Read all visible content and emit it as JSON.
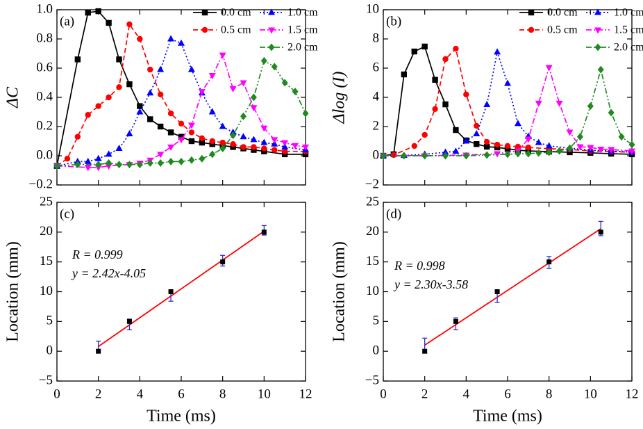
{
  "chart_data": [
    {
      "type": "line",
      "label": "(a)",
      "ylabel": "ΔC",
      "xlim": [
        0,
        12
      ],
      "xticks": [
        0,
        2,
        4,
        6,
        8,
        10,
        12
      ],
      "xticklabels": false,
      "ylim": [
        -0.2,
        1.0
      ],
      "yticks": [
        {
          "value": -0.2,
          "label": "−0.2"
        },
        {
          "value": 0,
          "label": "0.0"
        },
        0.2,
        0.4,
        0.6,
        0.8,
        {
          "value": 1.0,
          "label": "1.0"
        }
      ],
      "series": [
        {
          "name": "0.0 cm",
          "color": "#000000",
          "marker": "square",
          "linestyle": "solid",
          "x": [
            0,
            1,
            1.5,
            2,
            2.5,
            3,
            3.5,
            4,
            4.5,
            5,
            5.5,
            6,
            6.5,
            7,
            7.5,
            8,
            8.5,
            9,
            9.5,
            10,
            11,
            12
          ],
          "values": [
            -0.07,
            0.66,
            0.98,
            0.99,
            0.91,
            0.66,
            0.49,
            0.34,
            0.25,
            0.2,
            0.16,
            0.13,
            0.1,
            0.09,
            0.08,
            0.07,
            0.06,
            0.05,
            0.04,
            0.03,
            0.01,
            0.01
          ]
        },
        {
          "name": "0.5 cm",
          "color": "#ff0000",
          "marker": "circle",
          "linestyle": "dash",
          "x": [
            0,
            0.5,
            1,
            1.5,
            2,
            2.5,
            3,
            3.5,
            4,
            4.5,
            5,
            5.5,
            6,
            6.5,
            7,
            7.5,
            8,
            8.5,
            9,
            9.5,
            10,
            10.5,
            11,
            12
          ],
          "values": [
            -0.07,
            -0.02,
            0.13,
            0.28,
            0.34,
            0.4,
            0.47,
            0.9,
            0.8,
            0.59,
            0.42,
            0.29,
            0.22,
            0.16,
            0.12,
            0.1,
            0.09,
            0.08,
            0.06,
            0.06,
            0.05,
            0.04,
            0.03,
            0.03
          ]
        },
        {
          "name": "1.0 cm",
          "color": "#0000ff",
          "marker": "triangle-up",
          "linestyle": "dot",
          "x": [
            0,
            1,
            1.5,
            2,
            2.5,
            3,
            3.5,
            4,
            4.5,
            5,
            5.5,
            6,
            6.5,
            7,
            7.5,
            8,
            8.5,
            9,
            9.5,
            10,
            10.5,
            11,
            12
          ],
          "values": [
            -0.07,
            -0.04,
            -0.04,
            -0.02,
            0.01,
            0.05,
            0.15,
            0.3,
            0.43,
            0.59,
            0.8,
            0.77,
            0.59,
            0.43,
            0.3,
            0.2,
            0.16,
            0.13,
            0.11,
            0.09,
            0.08,
            0.06,
            0.04
          ]
        },
        {
          "name": "1.5 cm",
          "color": "#ff00ff",
          "marker": "triangle-down",
          "linestyle": "dashdot",
          "x": [
            0,
            1.5,
            2,
            2.5,
            3.5,
            4,
            4.5,
            5,
            5.5,
            6,
            6.5,
            7,
            7.5,
            8,
            8.5,
            9,
            9.5,
            10,
            10.5,
            11,
            11.5,
            12
          ],
          "values": [
            -0.07,
            -0.08,
            -0.08,
            -0.07,
            -0.06,
            -0.05,
            -0.03,
            0.01,
            0.06,
            0.11,
            0.21,
            0.44,
            0.55,
            0.69,
            0.46,
            0.5,
            0.33,
            0.19,
            0.11,
            0.09,
            0.07,
            0.06
          ]
        },
        {
          "name": "2.0 cm",
          "color": "#1f8a1f",
          "marker": "diamond",
          "linestyle": "dashdotdot",
          "x": [
            0,
            1,
            2,
            2.5,
            3,
            3.5,
            4,
            4.5,
            5,
            5.5,
            6,
            6.5,
            7,
            7.5,
            8,
            8.5,
            9,
            9.5,
            10,
            10.5,
            11,
            11.5,
            12
          ],
          "values": [
            -0.07,
            -0.06,
            -0.06,
            -0.05,
            -0.06,
            -0.06,
            -0.06,
            -0.05,
            -0.05,
            -0.04,
            -0.04,
            -0.03,
            -0.02,
            0.01,
            0.05,
            0.14,
            0.27,
            0.4,
            0.65,
            0.61,
            0.5,
            0.44,
            0.29
          ]
        }
      ]
    },
    {
      "type": "line",
      "label": "(b)",
      "ylabel": "Δlog (I)",
      "xlim": [
        0,
        12
      ],
      "xticks": [
        0,
        2,
        4,
        6,
        8,
        10,
        12
      ],
      "xticklabels": false,
      "ylim": [
        -2,
        10
      ],
      "yticks": [
        {
          "value": -2,
          "label": "−2"
        },
        0,
        2,
        4,
        6,
        8,
        10
      ],
      "series": [
        {
          "name": "0.0 cm",
          "color": "#000000",
          "marker": "square",
          "linestyle": "solid",
          "x": [
            0,
            0.5,
            1,
            1.5,
            2,
            2.5,
            3,
            3.5,
            4,
            4.5,
            5,
            5.5,
            6,
            6.5,
            7,
            8,
            9,
            10,
            11,
            12
          ],
          "values": [
            0,
            0.1,
            5.57,
            7.14,
            7.48,
            5.2,
            3.52,
            1.76,
            1.05,
            0.8,
            0.62,
            0.57,
            0.48,
            0.38,
            0.33,
            0.28,
            0.24,
            0.2,
            0.14,
            0.1
          ]
        },
        {
          "name": "0.5 cm",
          "color": "#ff0000",
          "marker": "circle",
          "linestyle": "dash",
          "x": [
            0,
            0.5,
            1.5,
            2,
            2.5,
            3,
            3.5,
            4,
            4.5,
            5,
            5.5,
            6,
            6.5,
            7,
            8,
            9,
            10,
            11,
            12
          ],
          "values": [
            0,
            0.05,
            0.67,
            1.43,
            3.2,
            6.62,
            7.33,
            4.2,
            2.05,
            0.95,
            0.76,
            0.67,
            0.62,
            0.57,
            0.48,
            0.43,
            0.33,
            0.29,
            0.24
          ]
        },
        {
          "name": "1.0 cm",
          "color": "#0000ff",
          "marker": "triangle-up",
          "linestyle": "dot",
          "x": [
            0,
            1,
            2,
            3,
            3.5,
            4,
            4.5,
            5,
            5.5,
            6,
            6.5,
            7,
            7.5,
            8,
            9,
            10,
            11,
            12
          ],
          "values": [
            0,
            0.02,
            0.1,
            0.24,
            0.3,
            1.0,
            1.5,
            3.5,
            7.1,
            4.95,
            2.2,
            1.33,
            0.9,
            0.67,
            0.52,
            0.38,
            0.33,
            0.24
          ]
        },
        {
          "name": "1.5 cm",
          "color": "#ff00ff",
          "marker": "triangle-down",
          "linestyle": "dashdot",
          "x": [
            0,
            2,
            4,
            5.5,
            6.5,
            7,
            7.5,
            8,
            8.5,
            9,
            9.5,
            10,
            10.5,
            11,
            12
          ],
          "values": [
            0,
            0,
            0.05,
            0.14,
            0.33,
            1.14,
            3.6,
            6.05,
            3.6,
            1.62,
            0.62,
            0.57,
            0.45,
            0.43,
            0.33
          ]
        },
        {
          "name": "2.0 cm",
          "color": "#1f8a1f",
          "marker": "diamond",
          "linestyle": "dashdotdot",
          "x": [
            0,
            1,
            2,
            3,
            4,
            5,
            6,
            6.5,
            7,
            7.5,
            8,
            8.5,
            9,
            9.5,
            10,
            10.5,
            11,
            11.5,
            12
          ],
          "values": [
            0,
            0,
            0,
            0,
            0,
            0.05,
            0.1,
            0.14,
            0.14,
            0.19,
            0.24,
            0.33,
            0.52,
            1.3,
            3.4,
            5.9,
            2.95,
            1.3,
            0.76
          ]
        }
      ]
    },
    {
      "type": "scatter",
      "label": "(c)",
      "xlabel": "Time (ms)",
      "ylabel": "Location (mm)",
      "xlim": [
        0,
        12
      ],
      "xticks": [
        0,
        2,
        4,
        6,
        8,
        10,
        12
      ],
      "xticklabels": true,
      "ylim": [
        -5,
        25
      ],
      "yticks": [
        {
          "value": -5,
          "label": "−5"
        },
        0,
        5,
        10,
        15,
        20,
        25
      ],
      "annotations": [
        "R = 0.999",
        "y = 2.42x-4.05"
      ],
      "points": {
        "color": "#000000",
        "x": [
          2,
          3.5,
          5.5,
          8,
          10
        ],
        "values": [
          0,
          5,
          10,
          15,
          20
        ]
      },
      "errorbars": {
        "color": "#2a2ad0",
        "x": [
          2,
          3.5,
          5.5,
          8,
          10
        ],
        "values": [
          0.9,
          4.5,
          9.3,
          15.2,
          20.3
        ],
        "errors": [
          0.8,
          0.9,
          0.9,
          0.9,
          0.8
        ]
      },
      "fit": {
        "color": "#ff0000",
        "x": [
          2,
          10
        ],
        "values": [
          0.79,
          20.15
        ]
      }
    },
    {
      "type": "scatter",
      "label": "(d)",
      "xlabel": "Time (ms)",
      "ylabel": "Location (mm)",
      "xlim": [
        0,
        12
      ],
      "xticks": [
        0,
        2,
        4,
        6,
        8,
        10,
        12
      ],
      "xticklabels": true,
      "ylim": [
        -5,
        25
      ],
      "yticks": [
        {
          "value": -5,
          "label": "−5"
        },
        0,
        5,
        10,
        15,
        20,
        25
      ],
      "annotations": [
        "R = 0.998",
        "y = 2.30x-3.58"
      ],
      "points": {
        "color": "#000000",
        "x": [
          2,
          3.5,
          5.5,
          8,
          10.5
        ],
        "values": [
          0,
          5,
          10,
          15,
          20
        ]
      },
      "errorbars": {
        "color": "#2a2ad0",
        "x": [
          2,
          3.5,
          5.5,
          8,
          10.5
        ],
        "values": [
          1.0,
          4.6,
          9.2,
          14.9,
          20.6
        ],
        "errors": [
          1.2,
          1.0,
          1.0,
          1.0,
          1.2
        ]
      },
      "fit": {
        "color": "#ff0000",
        "x": [
          2,
          10.5
        ],
        "values": [
          1.02,
          20.57
        ]
      }
    }
  ]
}
